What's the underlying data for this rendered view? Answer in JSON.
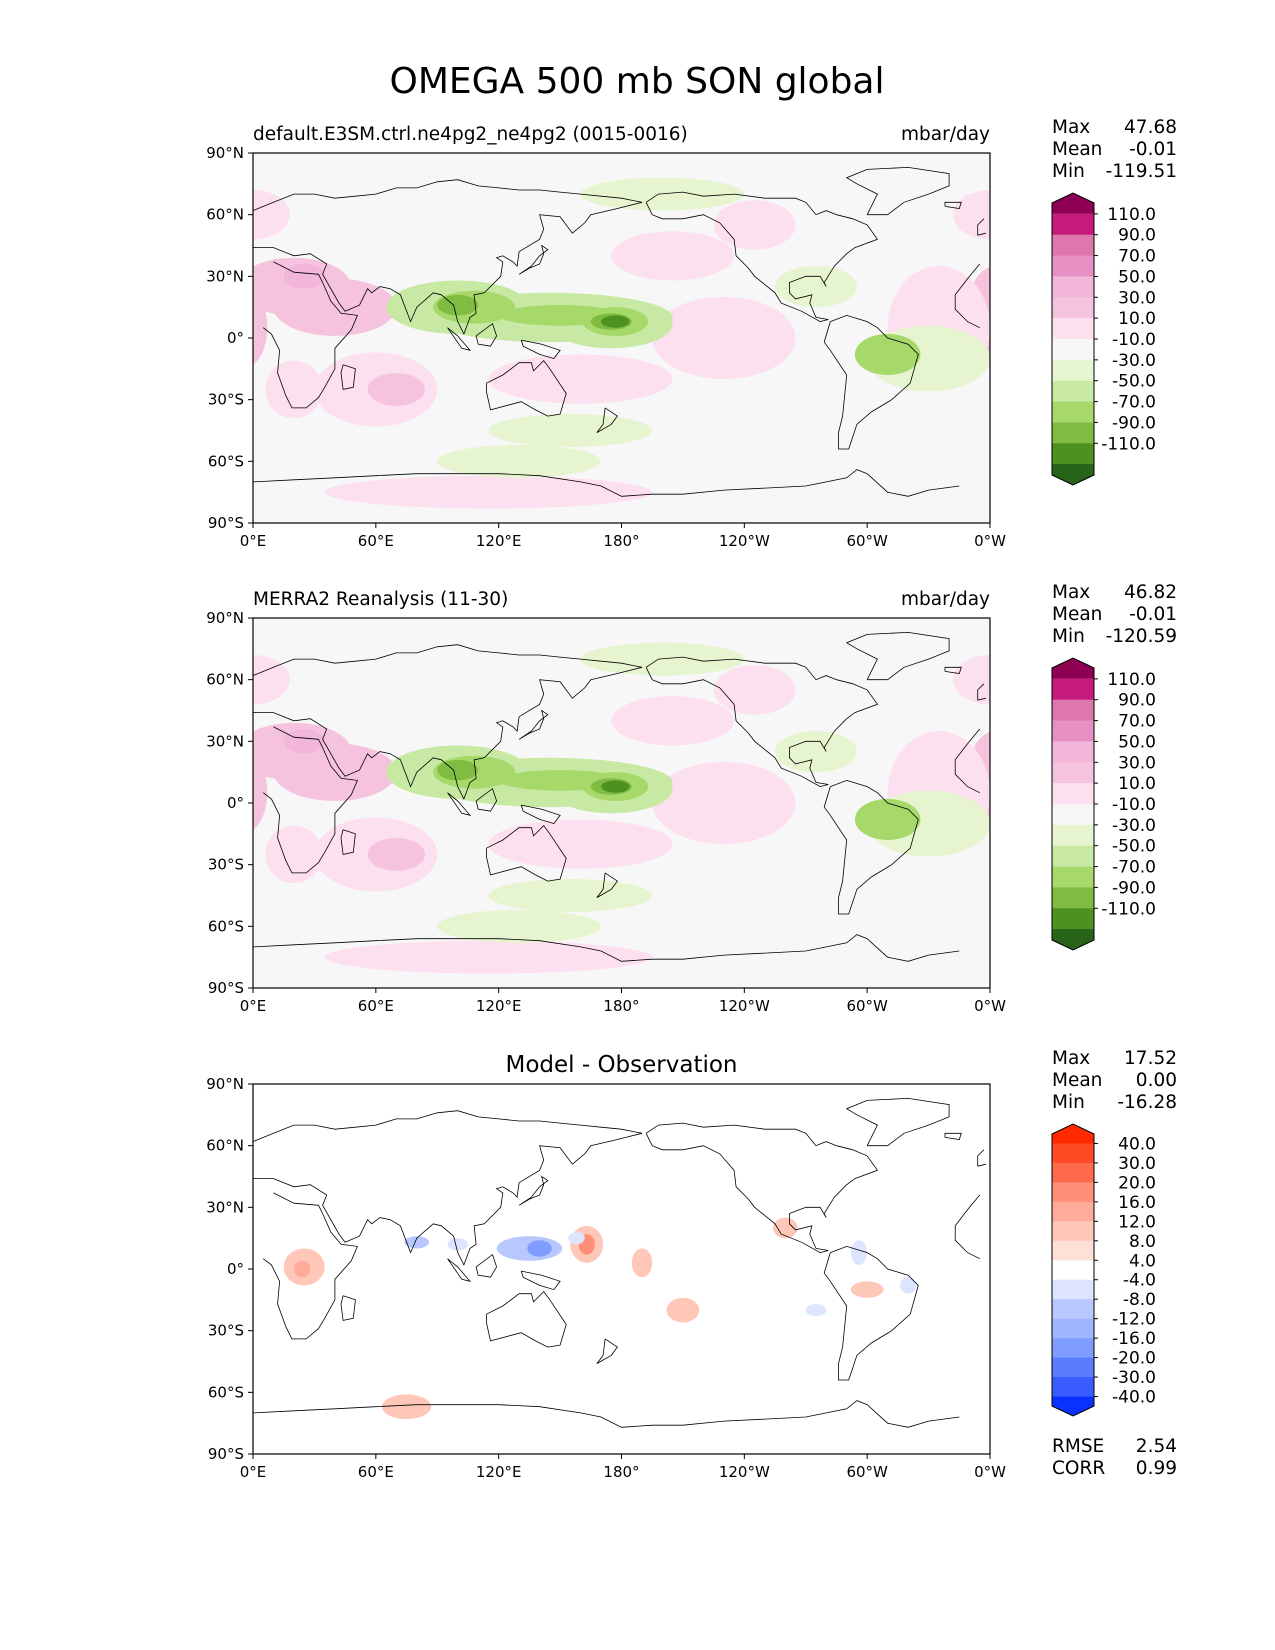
{
  "title": "OMEGA 500 mb SON global",
  "panels": [
    {
      "id": "model",
      "label_left": "default.E3SM.ctrl.ne4pg2_ne4pg2 (0015-0016)",
      "label_right": "mbar/day",
      "center_title": "",
      "stats": [
        {
          "label": "Max",
          "value": "47.68"
        },
        {
          "label": "Mean",
          "value": "-0.01"
        },
        {
          "label": "Min",
          "value": "-119.51"
        }
      ],
      "colorbar": {
        "colors": [
          "#276419",
          "#4d9221",
          "#7fbc41",
          "#a6d96a",
          "#c7e9a4",
          "#e6f5d0",
          "#f7f7f7",
          "#fde0ef",
          "#f6c3df",
          "#f1b6da",
          "#e690c3",
          "#de77ae",
          "#c51b7d",
          "#8e0152"
        ],
        "labels": [
          "110.0",
          "90.0",
          "70.0",
          "50.0",
          "30.0",
          "10.0",
          "-10.0",
          "-30.0",
          "-50.0",
          "-70.0",
          "-90.0",
          "-110.0"
        ]
      },
      "extra_stats": []
    },
    {
      "id": "obs",
      "label_left": "MERRA2 Reanalysis (11-30)",
      "label_right": "mbar/day",
      "center_title": "",
      "stats": [
        {
          "label": "Max",
          "value": "46.82"
        },
        {
          "label": "Mean",
          "value": "-0.01"
        },
        {
          "label": "Min",
          "value": "-120.59"
        }
      ],
      "colorbar": {
        "colors": [
          "#276419",
          "#4d9221",
          "#7fbc41",
          "#a6d96a",
          "#c7e9a4",
          "#e6f5d0",
          "#f7f7f7",
          "#fde0ef",
          "#f6c3df",
          "#f1b6da",
          "#e690c3",
          "#de77ae",
          "#c51b7d",
          "#8e0152"
        ],
        "labels": [
          "110.0",
          "90.0",
          "70.0",
          "50.0",
          "30.0",
          "10.0",
          "-10.0",
          "-30.0",
          "-50.0",
          "-70.0",
          "-90.0",
          "-110.0"
        ]
      },
      "extra_stats": []
    },
    {
      "id": "diff",
      "label_left": "",
      "label_right": "",
      "center_title": "Model - Observation",
      "stats": [
        {
          "label": "Max",
          "value": "17.52"
        },
        {
          "label": "Mean",
          "value": "0.00"
        },
        {
          "label": "Min",
          "value": "-16.28"
        }
      ],
      "colorbar": {
        "colors": [
          "#0a32ff",
          "#3a5cff",
          "#5b7cff",
          "#7f9cff",
          "#9fb6ff",
          "#b8c8ff",
          "#dde4ff",
          "#ffffff",
          "#ffe0d8",
          "#ffc7b8",
          "#ffab99",
          "#ff8f78",
          "#ff6a4d",
          "#ff4a26",
          "#ff2a00"
        ],
        "labels": [
          "40.0",
          "30.0",
          "20.0",
          "16.0",
          "12.0",
          "8.0",
          "4.0",
          "-4.0",
          "-8.0",
          "-12.0",
          "-16.0",
          "-20.0",
          "-30.0",
          "-40.0"
        ]
      },
      "extra_stats": [
        {
          "label": "RMSE",
          "value": "2.54"
        },
        {
          "label": "CORR",
          "value": "0.99"
        }
      ]
    }
  ],
  "axes": {
    "lat_ticks": [
      "90°N",
      "60°N",
      "30°N",
      "0°",
      "30°S",
      "60°S",
      "90°S"
    ],
    "lon_ticks": [
      "0°E",
      "60°E",
      "120°E",
      "180°",
      "120°W",
      "60°W",
      "0°W"
    ]
  }
}
